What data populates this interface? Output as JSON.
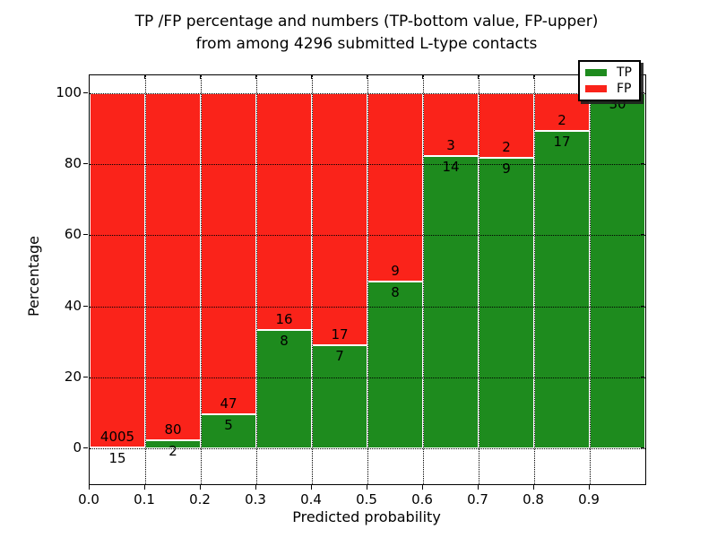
{
  "title": {
    "line1": "TP /FP percentage and numbers (TP-bottom value, FP-upper)",
    "line2": "from among 4296 submitted L-type contacts"
  },
  "axes": {
    "xlabel": "Predicted probability",
    "ylabel": "Percentage",
    "x_tick_labels": [
      "0.0",
      "0.1",
      "0.2",
      "0.3",
      "0.4",
      "0.5",
      "0.6",
      "0.7",
      "0.8",
      "0.9"
    ],
    "y_tick_labels": [
      "0",
      "20",
      "40",
      "60",
      "80",
      "100"
    ]
  },
  "legend": {
    "items": [
      {
        "label": "TP",
        "color": "#1e8b1e"
      },
      {
        "label": "FP",
        "color": "#fa231a"
      }
    ]
  },
  "colors": {
    "tp": "#1e8b1e",
    "fp": "#fa231a",
    "grid": "#000000",
    "background": "#ffffff"
  },
  "chart_data": {
    "type": "bar",
    "stacked": true,
    "normalized_to_percent": true,
    "title": "TP /FP percentage and numbers (TP-bottom value, FP-upper) from among 4296 submitted L-type contacts",
    "xlabel": "Predicted probability",
    "ylabel": "Percentage",
    "total_contacts": 4296,
    "bins_start": [
      0.0,
      0.1,
      0.2,
      0.3,
      0.4,
      0.5,
      0.6,
      0.7,
      0.8,
      0.9
    ],
    "bin_width": 0.1,
    "series": [
      {
        "name": "TP",
        "color": "#1e8b1e",
        "counts": [
          15,
          2,
          5,
          8,
          7,
          8,
          14,
          9,
          17,
          30
        ]
      },
      {
        "name": "FP",
        "color": "#fa231a",
        "counts": [
          4005,
          80,
          47,
          16,
          17,
          9,
          3,
          2,
          2,
          0
        ]
      }
    ],
    "tp_percent": [
      0.37,
      2.44,
      9.62,
      33.33,
      29.17,
      47.06,
      82.35,
      81.82,
      89.47,
      100.0
    ],
    "bar_total_percent": 100,
    "x_ticks": [
      0.0,
      0.1,
      0.2,
      0.3,
      0.4,
      0.5,
      0.6,
      0.7,
      0.8,
      0.9
    ],
    "y_ticks": [
      0,
      20,
      40,
      60,
      80,
      100
    ],
    "xlim": [
      0.0,
      1.0
    ],
    "ylim": [
      -10,
      105
    ],
    "grid": "dotted, drawn above bars",
    "legend_position": "upper right"
  }
}
